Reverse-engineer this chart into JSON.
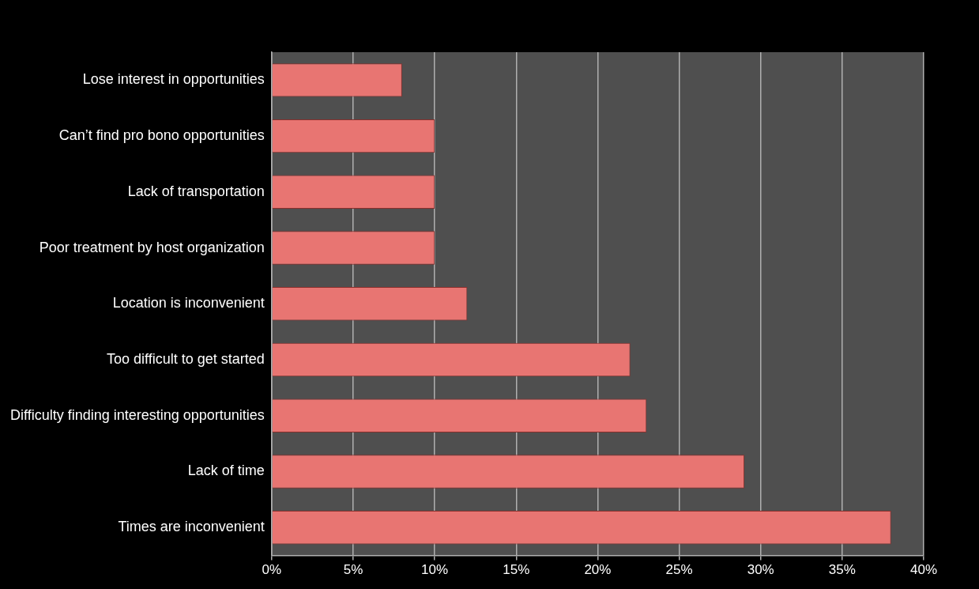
{
  "chart_data": {
    "type": "bar",
    "orientation": "horizontal",
    "categories": [
      "Lose interest in opportunities",
      "Can’t find pro bono opportunities",
      "Lack of transportation",
      "Poor treatment by host organization",
      "Location is inconvenient",
      "Too difficult to get started",
      "Difficulty finding interesting opportunities",
      "Lack of time",
      "Times are inconvenient"
    ],
    "values": [
      8,
      10,
      10,
      10,
      12,
      22,
      23,
      29,
      38
    ],
    "color": "#e87572",
    "xlim": [
      0,
      40
    ],
    "xticks": [
      {
        "value": 0,
        "label": "0%"
      },
      {
        "value": 5,
        "label": "5%"
      },
      {
        "value": 10,
        "label": "10%"
      },
      {
        "value": 15,
        "label": "15%"
      },
      {
        "value": 20,
        "label": "20%"
      },
      {
        "value": 25,
        "label": "25%"
      },
      {
        "value": 30,
        "label": "30%"
      },
      {
        "value": 35,
        "label": "35%"
      },
      {
        "value": 40,
        "label": "40%"
      }
    ],
    "grid": "x",
    "legend": false
  }
}
